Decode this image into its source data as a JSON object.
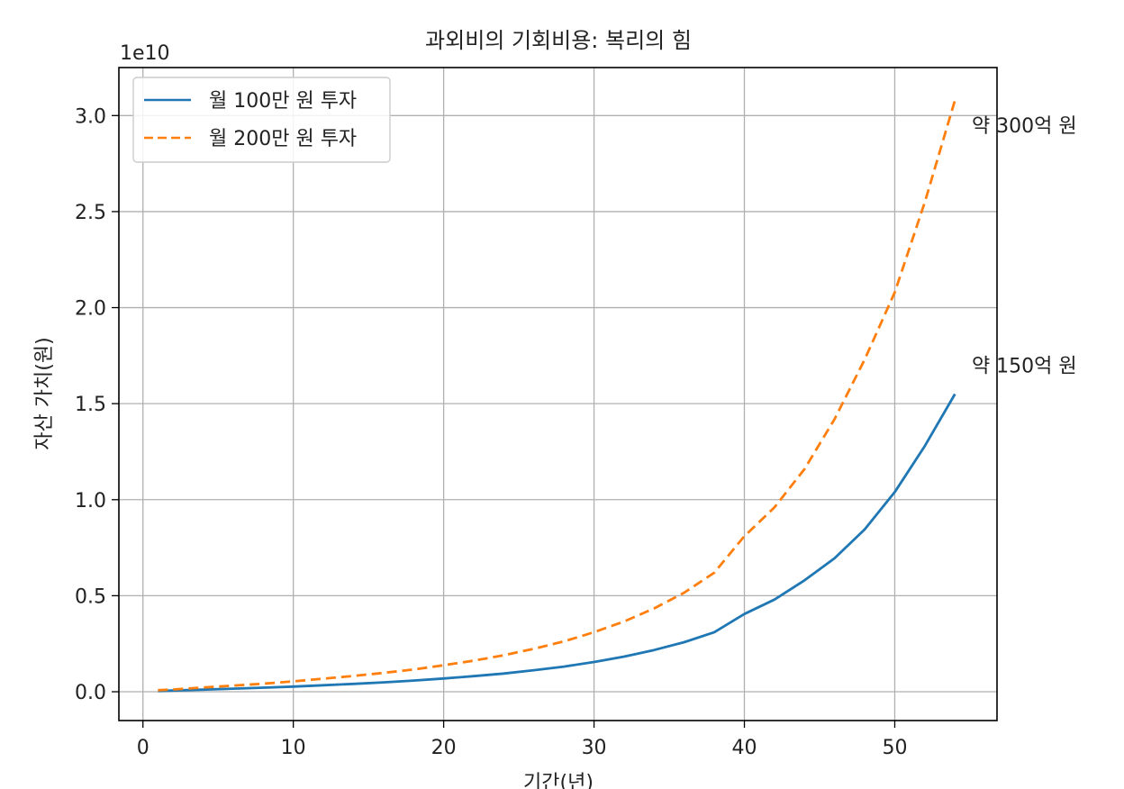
{
  "chart_data": {
    "type": "line",
    "title": "과외비의 기회비용: 복리의 힘",
    "xlabel": "기간(년)",
    "ylabel": "자산 가치(원)",
    "offset_label": "1e10",
    "xlim": [
      -1.6,
      56.8
    ],
    "ylim": [
      -0.15,
      3.25
    ],
    "x_ticks": [
      0,
      10,
      20,
      30,
      40,
      50
    ],
    "y_ticks": [
      0.0,
      0.5,
      1.0,
      1.5,
      2.0,
      2.5,
      3.0
    ],
    "y_tick_labels": [
      "0.0",
      "0.5",
      "1.0",
      "1.5",
      "2.0",
      "2.5",
      "3.0"
    ],
    "grid": true,
    "legend_position": "upper-left",
    "x": [
      1,
      2,
      4,
      6,
      8,
      10,
      12,
      14,
      16,
      18,
      20,
      22,
      24,
      26,
      28,
      30,
      32,
      34,
      36,
      38,
      40,
      42,
      44,
      46,
      48,
      50,
      52,
      54
    ],
    "series": [
      {
        "name": "월 100만 원 투자",
        "color": "#1f77b4",
        "dash": "solid",
        "values": [
          0.004,
          0.006,
          0.011,
          0.016,
          0.021,
          0.027,
          0.034,
          0.041,
          0.049,
          0.058,
          0.069,
          0.081,
          0.095,
          0.112,
          0.131,
          0.155,
          0.183,
          0.217,
          0.258,
          0.31,
          0.405,
          0.48,
          0.58,
          0.695,
          0.845,
          1.04,
          1.28,
          1.55
        ]
      },
      {
        "name": "월 200만 원 투자",
        "color": "#ff7f0e",
        "dash": "dashed",
        "values": [
          0.008,
          0.012,
          0.022,
          0.032,
          0.042,
          0.054,
          0.068,
          0.082,
          0.098,
          0.116,
          0.138,
          0.162,
          0.19,
          0.224,
          0.262,
          0.31,
          0.366,
          0.434,
          0.516,
          0.62,
          0.81,
          0.96,
          1.16,
          1.42,
          1.73,
          2.08,
          2.55,
          3.08
        ]
      }
    ],
    "annotations": [
      {
        "text": "약 300억 원",
        "x": 55,
        "y": 2.95
      },
      {
        "text": "약 150억 원",
        "x": 55,
        "y": 1.7
      }
    ]
  }
}
